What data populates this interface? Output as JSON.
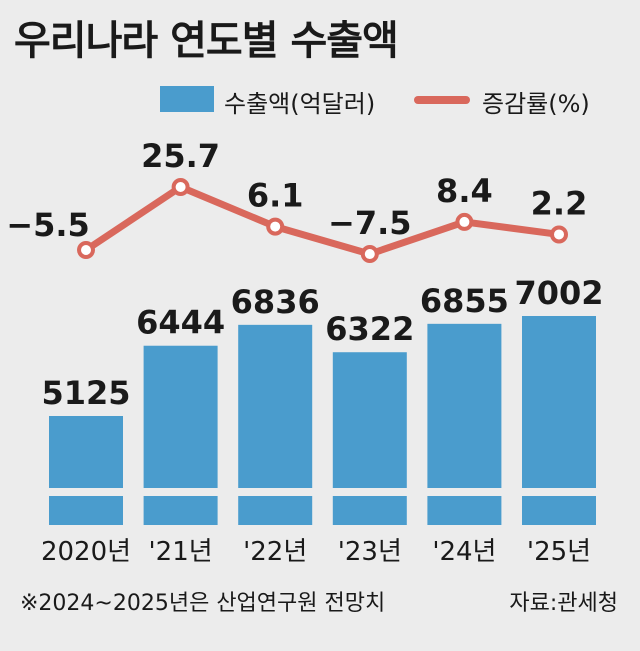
{
  "title": "우리나라 연도별 수출액",
  "legend": {
    "bar_label": "수출액(억달러)",
    "line_label": "증감률(%)"
  },
  "footnote": "※2024~2025년은 산업연구원 전망치",
  "source": "자료:관세청",
  "colors": {
    "bar": "#4a9ccd",
    "line": "#d9685c",
    "background": "#ececec"
  },
  "chart_data": {
    "type": "bar",
    "categories": [
      "2020년",
      "'21년",
      "'22년",
      "'23년",
      "'24년",
      "'25년"
    ],
    "series": [
      {
        "name": "수출액(억달러)",
        "type": "bar",
        "values": [
          5125,
          6444,
          6836,
          6322,
          6855,
          7002
        ],
        "labels": [
          "5125",
          "6444",
          "6836",
          "6322",
          "6855",
          "7002"
        ]
      },
      {
        "name": "증감률(%)",
        "type": "line",
        "values": [
          -5.5,
          25.7,
          6.1,
          -7.5,
          8.4,
          2.2
        ],
        "labels": [
          "−5.5",
          "25.7",
          "6.1",
          "−7.5",
          "8.4",
          "2.2"
        ]
      }
    ],
    "axis_break": true,
    "grid": false,
    "legend_position": "top"
  }
}
